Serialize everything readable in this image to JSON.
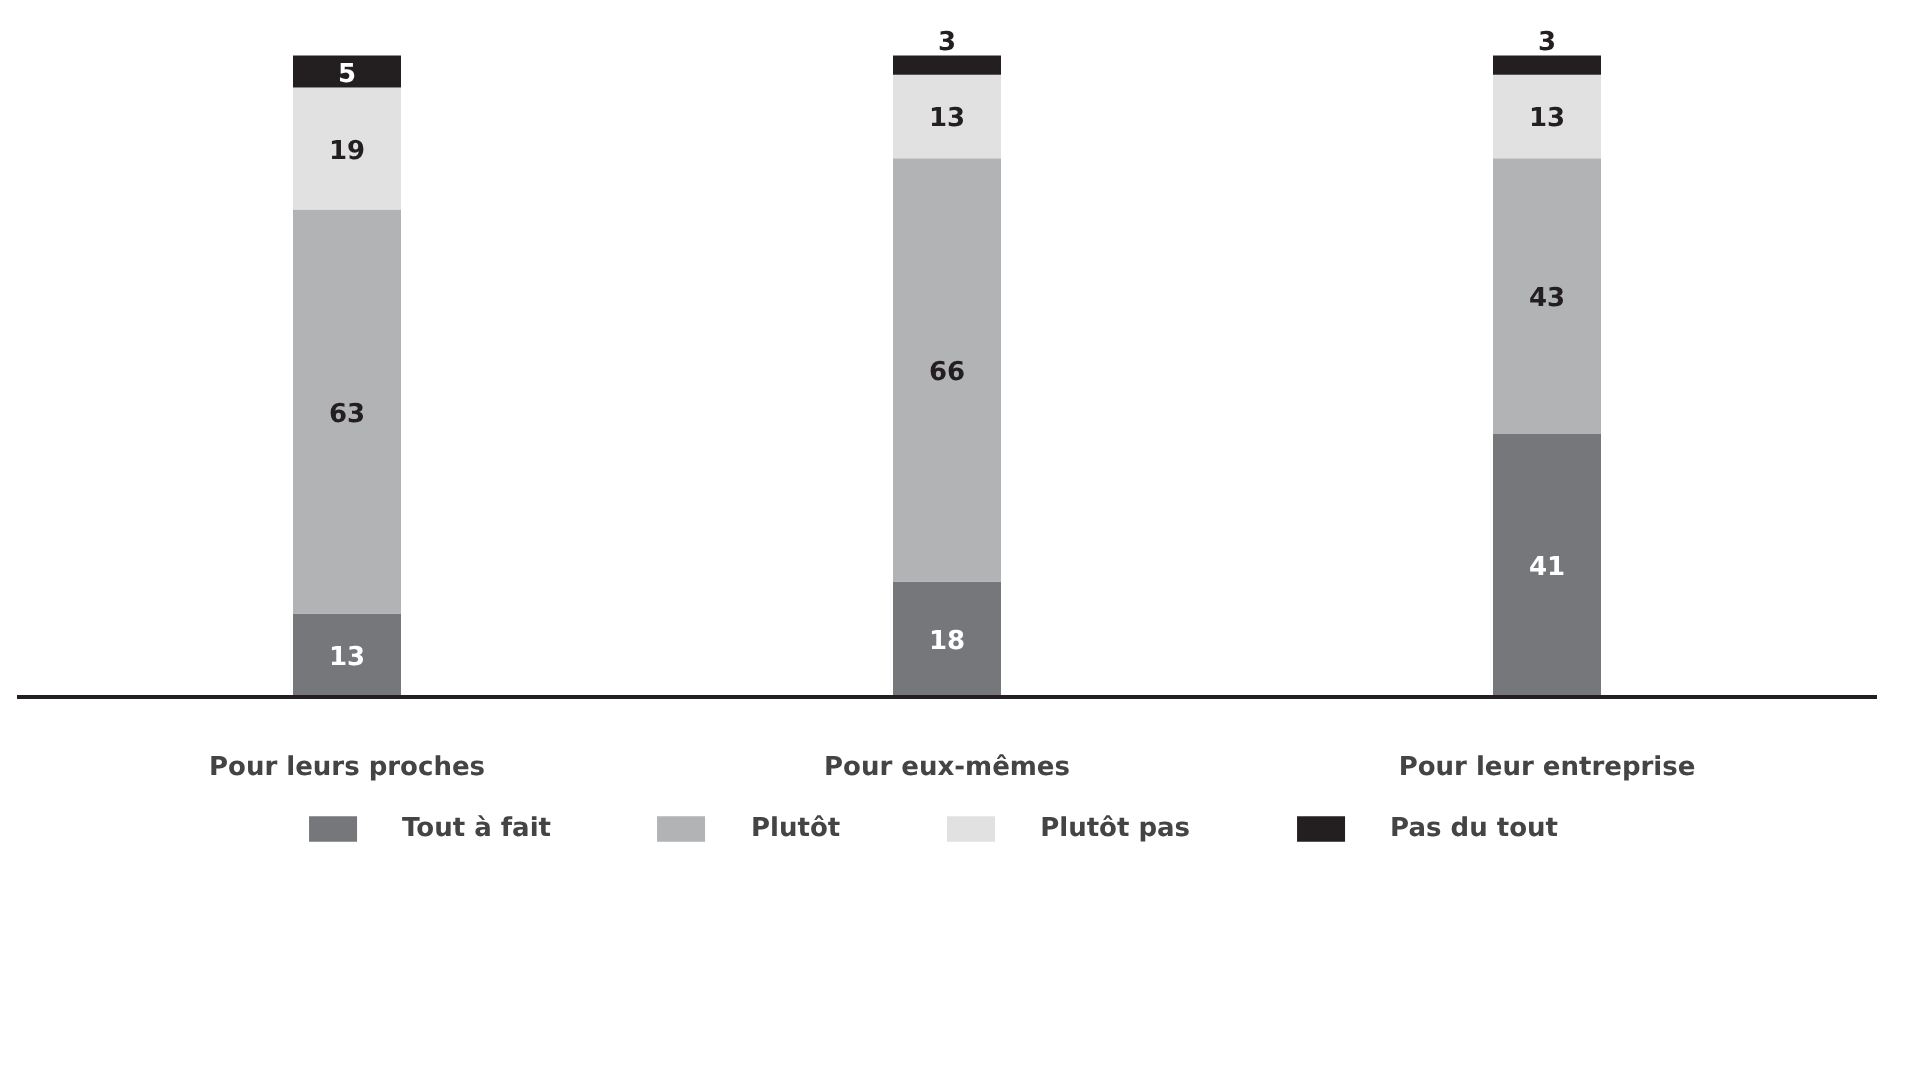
{
  "chart_data": {
    "type": "bar",
    "stacked": true,
    "data_labels": true,
    "legend": "bottom",
    "grid": false,
    "categories": [
      "Pour leurs proches",
      "Pour eux-mêmes",
      "Pour leur entreprise"
    ],
    "series": [
      {
        "name": "Tout à fait",
        "color": "#76777b",
        "values": [
          13,
          18,
          41
        ]
      },
      {
        "name": "Plutôt",
        "color": "#b2b3b5",
        "values": [
          63,
          66,
          43
        ]
      },
      {
        "name": "Plutôt pas",
        "color": "#e1e1e2",
        "values": [
          19,
          13,
          13
        ]
      },
      {
        "name": "Pas du tout",
        "color": "#231f20",
        "values": [
          5,
          3,
          3
        ]
      }
    ]
  }
}
